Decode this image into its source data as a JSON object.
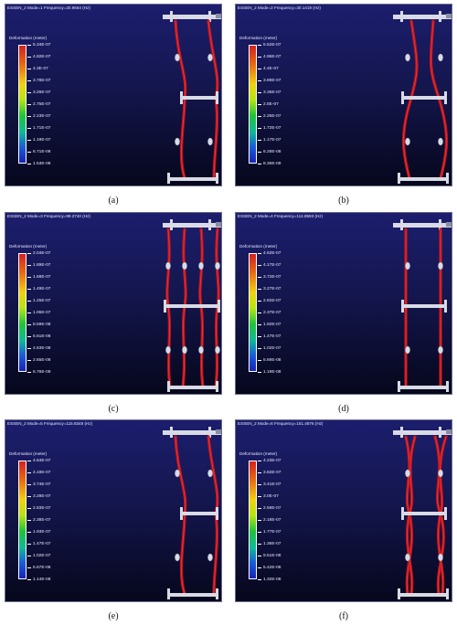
{
  "panels": [
    {
      "id": "a",
      "title": "ESSEN_2 Mode=1 Frequency=20.9554 (Hz)",
      "legend_title": "Deformation (meter)",
      "ticks": [
        "5.34E-07",
        "4.82E-07",
        "4.3E-07",
        "3.78E-07",
        "3.26E-07",
        "2.75E-07",
        "2.23E-07",
        "1.71E-07",
        "1.19E-07",
        "6.71E-08",
        "1.53E-08"
      ],
      "caption": "(a)",
      "shape": "sway",
      "mid_shift": 1
    },
    {
      "id": "b",
      "title": "ESSEN_2 Mode=2 Frequency=30.1419 (Hz)",
      "legend_title": "Deformation (meter)",
      "ticks": [
        "5.52E-07",
        "4.96E-07",
        "4.4E-07",
        "3.89E-07",
        "3.35E-07",
        "2.8E-07",
        "2.26E-07",
        "1.72E-07",
        "1.17E-07",
        "6.28E-08",
        "8.36E-09"
      ],
      "caption": "(b)",
      "shape": "bulge",
      "mid_shift": 0
    },
    {
      "id": "c",
      "title": "ESSEN_2 Mode=3 Frequency=99.2740 (Hz)",
      "legend_title": "Deformation (meter)",
      "ticks": [
        "2.04E-07",
        "1.89E-07",
        "1.68E-07",
        "1.49E-07",
        "1.25E-07",
        "1.06E-07",
        "8.59E-08",
        "6.61E-08",
        "4.63E-08",
        "2.65E-08",
        "6.76E-09"
      ],
      "caption": "(c)",
      "shape": "double",
      "mid_shift": 0
    },
    {
      "id": "d",
      "title": "ESSEN_2 Mode=4 Frequency=114.8593 (Hz)",
      "legend_title": "Deformation (meter)",
      "ticks": [
        "4.62E-07",
        "4.17E-07",
        "3.72E-07",
        "3.27E-07",
        "2.82E-07",
        "2.37E-07",
        "1.92E-07",
        "1.47E-07",
        "1.02E-07",
        "5.69E-08",
        "1.19E-08"
      ],
      "caption": "(d)",
      "shape": "straight",
      "mid_shift": 0
    },
    {
      "id": "e",
      "title": "ESSEN_2 Mode=5 Frequency=115.8348 (Hz)",
      "legend_title": "Deformation (meter)",
      "ticks": [
        "4.64E-07",
        "4.19E-07",
        "3.74E-07",
        "3.28E-07",
        "2.83E-07",
        "2.38E-07",
        "1.93E-07",
        "1.47E-07",
        "1.02E-07",
        "5.67E-08",
        "1.14E-08"
      ],
      "caption": "(e)",
      "shape": "sway",
      "mid_shift": 1
    },
    {
      "id": "f",
      "title": "ESSEN_2 Mode=6 Frequency=151.4876 (Hz)",
      "legend_title": "Deformation (meter)",
      "ticks": [
        "4.23E-07",
        "3.82E-07",
        "3.41E-07",
        "3.0E-07",
        "2.59E-07",
        "2.18E-07",
        "1.77E-07",
        "1.36E-07",
        "9.51E-08",
        "5.42E-08",
        "1.32E-08"
      ],
      "caption": "(f)",
      "shape": "cross",
      "mid_shift": 0
    }
  ],
  "colors": {
    "beam": "#c0141c",
    "beam_highlight": "#ff4a4a",
    "frame_metal": "#d8dbe6",
    "background_top": "#1c1e6e",
    "background_bottom": "#06071c"
  }
}
